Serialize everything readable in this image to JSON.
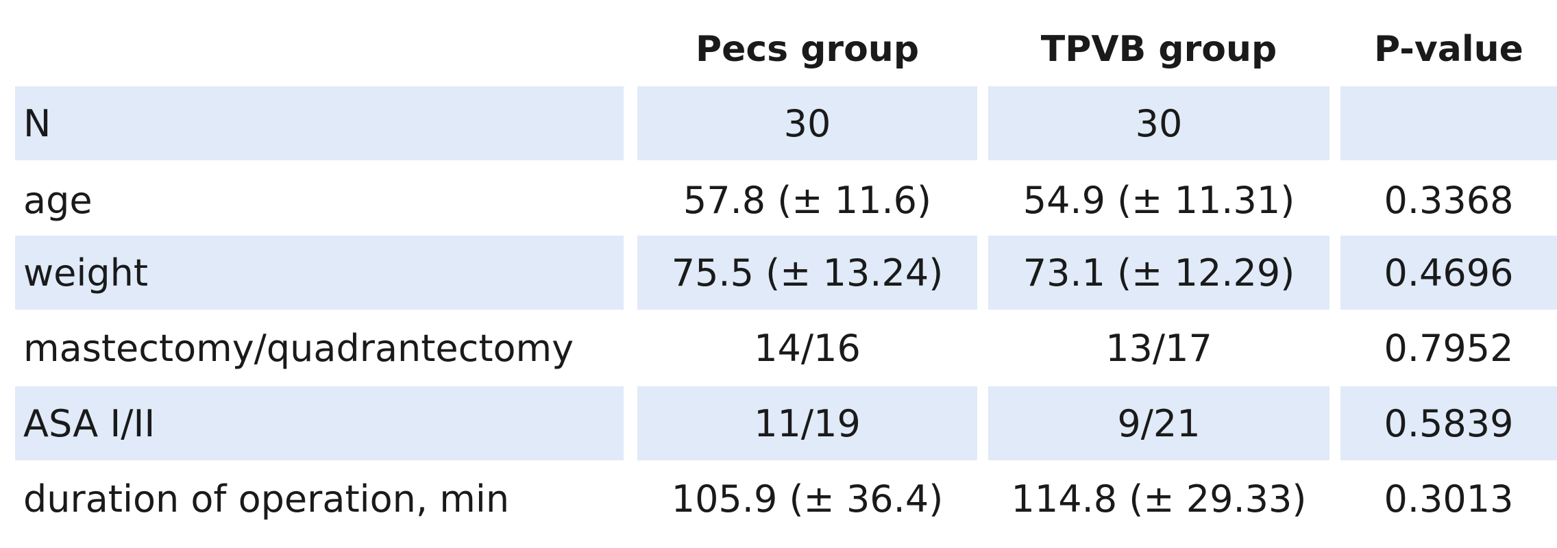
{
  "table": {
    "headers": [
      "",
      "Pecs group",
      "TPVB group",
      "P-value"
    ],
    "rows": [
      [
        "N",
        "30",
        "30",
        ""
      ],
      [
        "age",
        "57.8 (± 11.6)",
        "54.9 (± 11.31)",
        "0.3368"
      ],
      [
        "weight",
        "75.5 (± 13.24)",
        "73.1 (± 12.29)",
        "0.4696"
      ],
      [
        "mastectomy/quadrantectomy",
        "14/16",
        "13/17",
        "0.7952"
      ],
      [
        "ASA I/II",
        "11/19",
        "9/21",
        "0.5839"
      ],
      [
        "duration of operation, min",
        "105.9 (± 36.4)",
        "114.8 (± 29.33)",
        "0.3013"
      ]
    ],
    "colors": {
      "shaded_row": "#e0eaf8",
      "text": "#1a1a1a",
      "background": "#ffffff"
    }
  }
}
